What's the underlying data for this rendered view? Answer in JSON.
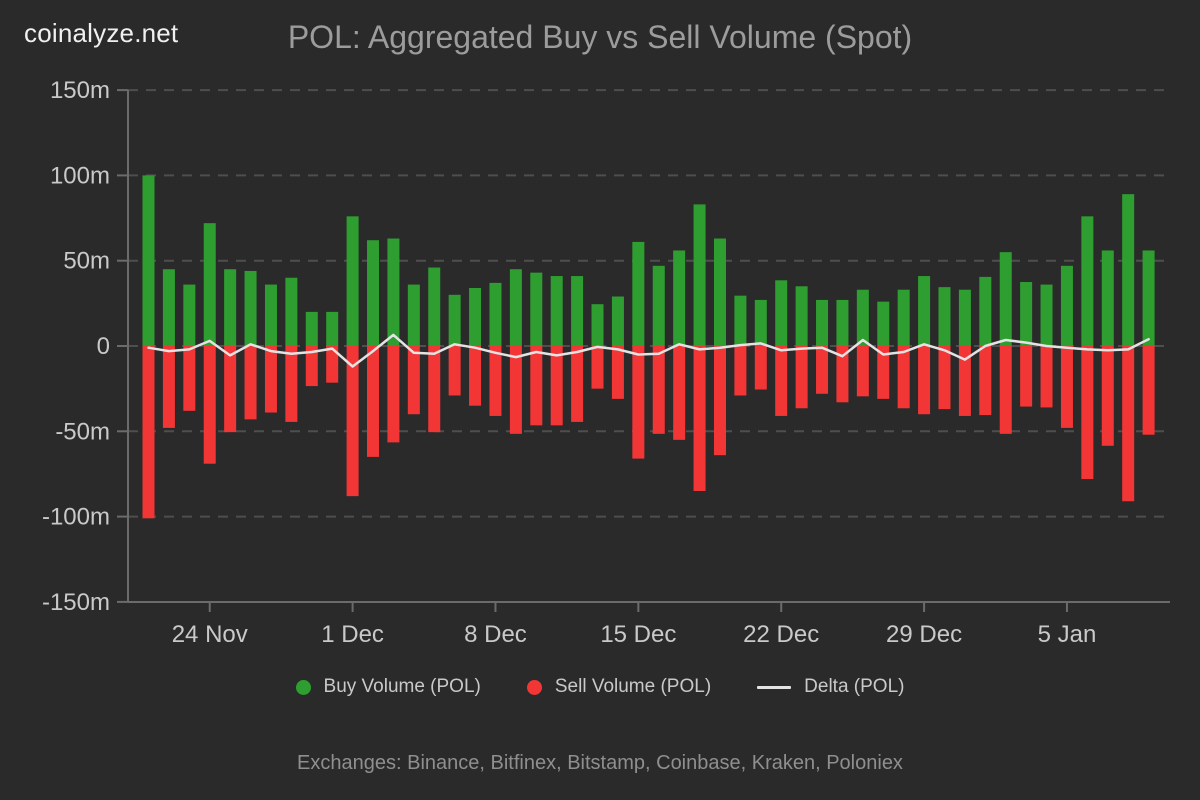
{
  "header": {
    "logo": "coinalyze.net",
    "title": "POL: Aggregated Buy vs Sell Volume (Spot)"
  },
  "legend": {
    "buy_label": "Buy Volume (POL)",
    "sell_label": "Sell Volume (POL)",
    "delta_label": "Delta (POL)"
  },
  "footer": {
    "text": "Exchanges: Binance, Bitfinex, Bitstamp, Coinbase, Kraken, Poloniex"
  },
  "colors": {
    "background": "#2a2a2b",
    "buy": "#2f9e31",
    "sell": "#f23636",
    "delta": "#e3e3e3",
    "grid": "#4e4e4e",
    "axis": "#6b6b6b",
    "tick_text": "#c9c9c9",
    "legend_text": "#c9c9c9",
    "title_text": "#9c9c9c",
    "logo_text": "#f0f0f0",
    "footer_text": "#8f8f8f"
  },
  "chart_data": {
    "type": "bar",
    "title": "POL: Aggregated Buy vs Sell Volume (Spot)",
    "value_unit": "millions of POL (m)",
    "ylim": [
      -150,
      150
    ],
    "grid": "horizontal dashed",
    "legend_position": "bottom",
    "yticks": [
      {
        "value": 150,
        "label": "150m"
      },
      {
        "value": 100,
        "label": "100m"
      },
      {
        "value": 50,
        "label": "50m"
      },
      {
        "value": 0,
        "label": "0"
      },
      {
        "value": -50,
        "label": "-50m"
      },
      {
        "value": -100,
        "label": "-100m"
      },
      {
        "value": -150,
        "label": "-150m"
      }
    ],
    "x": [
      "21 Nov",
      "22 Nov",
      "23 Nov",
      "24 Nov",
      "25 Nov",
      "26 Nov",
      "27 Nov",
      "28 Nov",
      "29 Nov",
      "30 Nov",
      "1 Dec",
      "2 Dec",
      "3 Dec",
      "4 Dec",
      "5 Dec",
      "6 Dec",
      "7 Dec",
      "8 Dec",
      "9 Dec",
      "10 Dec",
      "11 Dec",
      "12 Dec",
      "13 Dec",
      "14 Dec",
      "15 Dec",
      "16 Dec",
      "17 Dec",
      "18 Dec",
      "19 Dec",
      "20 Dec",
      "21 Dec",
      "22 Dec",
      "23 Dec",
      "24 Dec",
      "25 Dec",
      "26 Dec",
      "27 Dec",
      "28 Dec",
      "29 Dec",
      "30 Dec",
      "31 Dec",
      "1 Jan",
      "2 Jan",
      "3 Jan",
      "4 Jan",
      "5 Jan",
      "6 Jan",
      "7 Jan",
      "8 Jan",
      "9 Jan"
    ],
    "xticks": [
      {
        "index": 3,
        "label": "24 Nov"
      },
      {
        "index": 10,
        "label": "1 Dec"
      },
      {
        "index": 17,
        "label": "8 Dec"
      },
      {
        "index": 24,
        "label": "15 Dec"
      },
      {
        "index": 31,
        "label": "22 Dec"
      },
      {
        "index": 38,
        "label": "29 Dec"
      },
      {
        "index": 45,
        "label": "5 Jan"
      }
    ],
    "series": [
      {
        "name": "Buy Volume (POL)",
        "type": "bar",
        "values": [
          100,
          45,
          36,
          72,
          45,
          44,
          36,
          40,
          20,
          20,
          76,
          62,
          63,
          36,
          46,
          30,
          34,
          37,
          45,
          43,
          41,
          41,
          24.5,
          29,
          61,
          47,
          56,
          83,
          63,
          29.5,
          27,
          38.5,
          35,
          27,
          27,
          33,
          26,
          33,
          41,
          34.5,
          33,
          40.5,
          55,
          37.5,
          36,
          47,
          76,
          56,
          89,
          56
        ]
      },
      {
        "name": "Sell Volume (POL)",
        "type": "bar",
        "values": [
          -101,
          -48,
          -38,
          -69,
          -50.5,
          -43,
          -39,
          -44.5,
          -23.5,
          -21.5,
          -88,
          -65,
          -56.5,
          -40,
          -50.5,
          -29,
          -35,
          -41,
          -51.5,
          -46.5,
          -46.5,
          -44.5,
          -25,
          -31,
          -66,
          -51.5,
          -55,
          -85,
          -64,
          -29,
          -25.5,
          -41,
          -36.5,
          -28,
          -33,
          -29.5,
          -31,
          -36.5,
          -40,
          -37,
          -41,
          -40.5,
          -51.5,
          -35.5,
          -36,
          -48,
          -78,
          -58.5,
          -91,
          -52
        ]
      },
      {
        "name": "Delta (POL)",
        "type": "line",
        "derivation": "buy volume minus sell volume",
        "values": [
          -1,
          -3,
          -2,
          3,
          -5.5,
          1,
          -3,
          -4.5,
          -3.5,
          -1.5,
          -12,
          -3,
          6.5,
          -4,
          -4.5,
          1,
          -1,
          -4,
          -6.5,
          -3.5,
          -5.5,
          -3.5,
          -0.5,
          -2,
          -5,
          -4.5,
          1,
          -2,
          -1,
          0.5,
          1.5,
          -2.5,
          -1.5,
          -1,
          -6,
          3.5,
          -5,
          -3.5,
          1,
          -2.5,
          -8,
          0,
          3.5,
          2,
          0,
          -1,
          -2,
          -2.5,
          -2,
          4
        ]
      }
    ]
  }
}
